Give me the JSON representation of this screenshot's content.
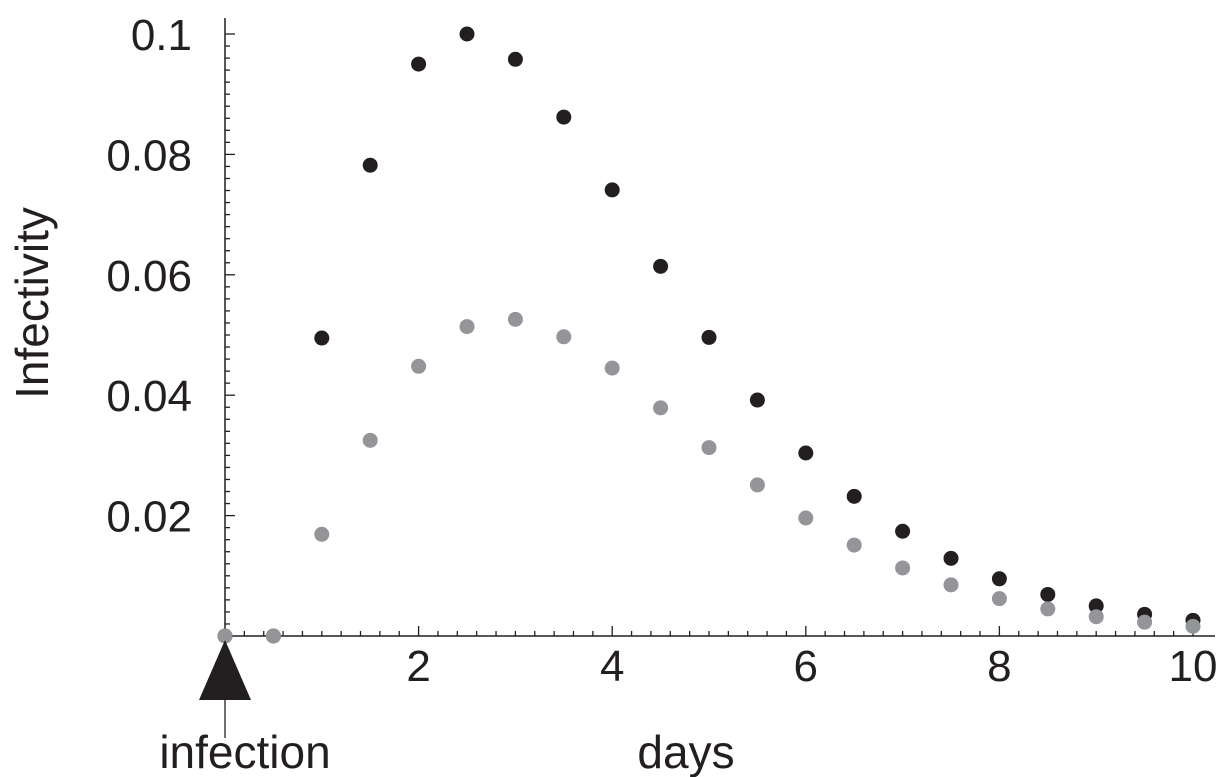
{
  "chart_data": {
    "type": "scatter",
    "title": "",
    "xlabel": "days",
    "ylabel": "Infectivity",
    "xlim": [
      0,
      10
    ],
    "ylim": [
      0,
      0.1
    ],
    "xticks": [
      {
        "value": 2,
        "label": "2"
      },
      {
        "value": 4,
        "label": "4"
      },
      {
        "value": 6,
        "label": "6"
      },
      {
        "value": 8,
        "label": "8"
      },
      {
        "value": 10,
        "label": "10"
      }
    ],
    "yticks": [
      {
        "value": 0.02,
        "label": "0.02"
      },
      {
        "value": 0.04,
        "label": "0.04"
      },
      {
        "value": 0.06,
        "label": "0.06"
      },
      {
        "value": 0.08,
        "label": "0.08"
      },
      {
        "value": 0.1,
        "label": "0.1"
      }
    ],
    "grid": false,
    "legend": "none",
    "annotations": [
      {
        "text": "infection",
        "x": 0,
        "marker": "arrow-up"
      }
    ],
    "series": [
      {
        "color": "#231f20",
        "points": [
          [
            0,
            0
          ],
          [
            0.5,
            0
          ],
          [
            1,
            0.0495
          ],
          [
            1.5,
            0.0782
          ],
          [
            2,
            0.095
          ],
          [
            2.5,
            0.1
          ],
          [
            3,
            0.0958
          ],
          [
            3.5,
            0.0862
          ],
          [
            4,
            0.0741
          ],
          [
            4.5,
            0.0614
          ],
          [
            5,
            0.0496
          ],
          [
            5.5,
            0.0392
          ],
          [
            6,
            0.0304
          ],
          [
            6.5,
            0.0232
          ],
          [
            7,
            0.0174
          ],
          [
            7.5,
            0.0129
          ],
          [
            8,
            0.0095
          ],
          [
            8.5,
            0.0069
          ],
          [
            9,
            0.005
          ],
          [
            9.5,
            0.0036
          ],
          [
            10,
            0.0026
          ]
        ]
      },
      {
        "color": "#939598",
        "points": [
          [
            0,
            0
          ],
          [
            0.5,
            0
          ],
          [
            1,
            0.0169
          ],
          [
            1.5,
            0.0325
          ],
          [
            2,
            0.0448
          ],
          [
            2.5,
            0.0514
          ],
          [
            3,
            0.0526
          ],
          [
            3.5,
            0.0497
          ],
          [
            4,
            0.0445
          ],
          [
            4.5,
            0.0379
          ],
          [
            5,
            0.0313
          ],
          [
            5.5,
            0.0251
          ],
          [
            6,
            0.0196
          ],
          [
            6.5,
            0.0151
          ],
          [
            7,
            0.0113
          ],
          [
            7.5,
            0.0085
          ],
          [
            8,
            0.0062
          ],
          [
            8.5,
            0.0045
          ],
          [
            9,
            0.0032
          ],
          [
            9.5,
            0.0023
          ],
          [
            10,
            0.0016
          ]
        ]
      }
    ]
  }
}
